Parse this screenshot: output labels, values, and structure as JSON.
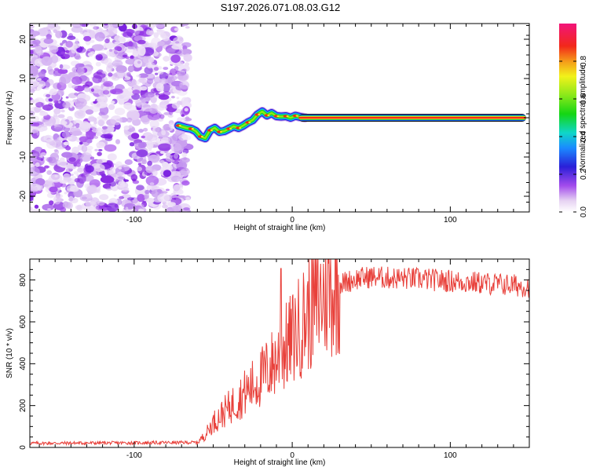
{
  "title": "S197.2026.071.08.03.G12",
  "chart_data": [
    {
      "type": "heatmap",
      "name": "spectrogram",
      "xlabel": "Height of straight line (km)",
      "ylabel": "Frequency (Hz)",
      "xlim": [
        -166,
        150
      ],
      "ylim": [
        -24,
        24
      ],
      "xticks": [
        -100,
        0,
        100
      ],
      "yticks": [
        -20,
        -10,
        0,
        10,
        20
      ],
      "noise_region_x": [
        -166,
        -68
      ],
      "trace": {
        "x": [
          -72,
          -67,
          -64,
          -61,
          -58,
          -55,
          -52,
          -49,
          -46,
          -43,
          -40,
          -37,
          -34,
          -31,
          -28,
          -25,
          -22,
          -19,
          -16,
          -13,
          -10,
          -7,
          -4,
          -1,
          2,
          5,
          8
        ],
        "y": [
          -2.0,
          -2.6,
          -2.8,
          -3.4,
          -4.8,
          -5.2,
          -3.2,
          -2.6,
          -3.6,
          -3.4,
          -2.8,
          -2.2,
          -2.6,
          -2.0,
          -1.2,
          -0.6,
          0.8,
          1.6,
          0.6,
          1.2,
          0.4,
          0.3,
          0.4,
          0.0,
          0.5,
          0.2,
          0.0
        ]
      },
      "line": {
        "x": [
          4,
          148
        ],
        "y": 0
      },
      "colorbar": {
        "label": "Normalized spectral amplitude",
        "range": [
          0,
          1
        ],
        "ticks": [
          "0.0",
          "0.2",
          "0.4",
          "0.6",
          "0.8"
        ],
        "tick_values": [
          0,
          0.2,
          0.4,
          0.6,
          0.8
        ]
      }
    },
    {
      "type": "line",
      "name": "snr",
      "xlabel": "Height of straight line (km)",
      "ylabel": "SNR (10 * v/v)",
      "xlim": [
        -166,
        150
      ],
      "ylim": [
        0,
        900
      ],
      "xticks": [
        -100,
        0,
        100
      ],
      "yticks": [
        0,
        200,
        400,
        600,
        800
      ],
      "color": "#e8403a",
      "trend": {
        "x": [
          -166,
          -100,
          -60,
          -55,
          -50,
          -40,
          -30,
          -20,
          -10,
          0,
          10,
          20,
          30,
          40,
          50,
          60,
          80,
          100,
          120,
          150
        ],
        "y": [
          20,
          22,
          24,
          60,
          120,
          190,
          260,
          330,
          420,
          520,
          640,
          730,
          780,
          805,
          815,
          810,
          805,
          795,
          785,
          770
        ]
      },
      "spike": {
        "x": -7,
        "y": 855
      }
    }
  ]
}
